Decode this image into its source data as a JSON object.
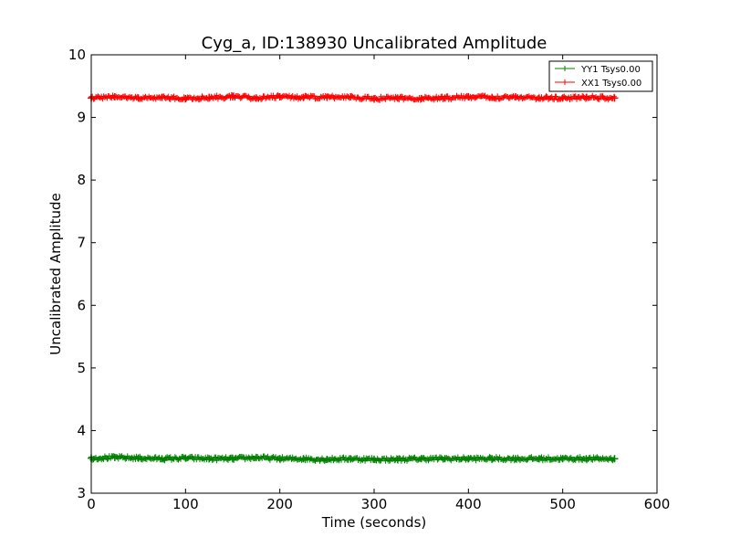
{
  "chart_data": {
    "type": "line",
    "title": "Cyg_a, ID:138930 Uncalibrated Amplitude",
    "xlabel": "Time (seconds)",
    "ylabel": "Uncalibrated Amplitude",
    "xlim": [
      0,
      600
    ],
    "ylim": [
      3,
      10
    ],
    "xticks": [
      0,
      100,
      200,
      300,
      400,
      500,
      600
    ],
    "yticks": [
      3,
      4,
      5,
      6,
      7,
      8,
      9,
      10
    ],
    "grid": false,
    "legend_position": "top-right",
    "series": [
      {
        "name": "YY1 Tsys0.00",
        "color": "#008000",
        "marker": "+",
        "x": [
          0,
          25,
          50,
          75,
          100,
          125,
          150,
          175,
          200,
          225,
          250,
          275,
          300,
          325,
          350,
          375,
          400,
          425,
          450,
          475,
          500,
          525,
          555
        ],
        "y": [
          3.56,
          3.57,
          3.56,
          3.55,
          3.56,
          3.55,
          3.55,
          3.57,
          3.55,
          3.55,
          3.54,
          3.55,
          3.54,
          3.54,
          3.55,
          3.55,
          3.55,
          3.55,
          3.55,
          3.55,
          3.55,
          3.55,
          3.55
        ]
      },
      {
        "name": "XX1 Tsys0.00",
        "color": "#ff0000",
        "marker": "+",
        "x": [
          0,
          25,
          50,
          75,
          100,
          125,
          150,
          175,
          200,
          225,
          250,
          275,
          300,
          325,
          350,
          375,
          400,
          425,
          450,
          475,
          500,
          525,
          555
        ],
        "y": [
          9.31,
          9.33,
          9.31,
          9.32,
          9.3,
          9.32,
          9.33,
          9.31,
          9.33,
          9.32,
          9.32,
          9.33,
          9.3,
          9.31,
          9.3,
          9.31,
          9.33,
          9.32,
          9.33,
          9.31,
          9.31,
          9.32,
          9.31
        ]
      }
    ]
  }
}
